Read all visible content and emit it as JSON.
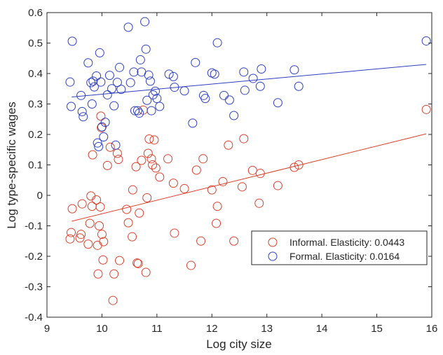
{
  "chart_data": {
    "type": "scatter",
    "xlabel": "Log city size",
    "ylabel": "Log type-specific wages",
    "xlim": [
      9,
      16
    ],
    "ylim": [
      -0.4,
      0.6
    ],
    "xticks": [
      "9",
      "10",
      "11",
      "12",
      "13",
      "14",
      "15",
      "16"
    ],
    "yticks": [
      "-0.4",
      "-0.3",
      "-0.2",
      "-0.1",
      "0",
      "0.1",
      "0.2",
      "0.3",
      "0.4",
      "0.5",
      "0.6"
    ],
    "grid": false,
    "legend_position": "lower-right",
    "series": [
      {
        "name": "Informal. Elasticity: 0.0443",
        "color": "#d9412b",
        "marker": "circle",
        "fit_line": [
          [
            9.45,
            -0.085
          ],
          [
            15.9,
            0.202
          ]
        ],
        "points": [
          [
            9.42,
            -0.143
          ],
          [
            9.44,
            -0.122
          ],
          [
            9.46,
            -0.044
          ],
          [
            9.6,
            -0.14
          ],
          [
            9.62,
            -0.128
          ],
          [
            9.64,
            -0.028
          ],
          [
            9.75,
            -0.16
          ],
          [
            9.78,
            -0.092
          ],
          [
            9.8,
            -0.002
          ],
          [
            9.82,
            -0.036
          ],
          [
            9.83,
            0.133
          ],
          [
            9.9,
            -0.015
          ],
          [
            9.92,
            -0.164
          ],
          [
            9.93,
            -0.258
          ],
          [
            9.95,
            -0.1
          ],
          [
            9.97,
            -0.038
          ],
          [
            9.98,
            0.26
          ],
          [
            9.99,
            0.222
          ],
          [
            10.0,
            -0.128
          ],
          [
            10.02,
            -0.212
          ],
          [
            10.03,
            -0.152
          ],
          [
            10.1,
            0.098
          ],
          [
            10.15,
            0.158
          ],
          [
            10.2,
            -0.345
          ],
          [
            10.22,
            -0.258
          ],
          [
            10.28,
            0.138
          ],
          [
            10.3,
            0.118
          ],
          [
            10.32,
            -0.214
          ],
          [
            10.45,
            -0.046
          ],
          [
            10.48,
            -0.09
          ],
          [
            10.55,
            -0.136
          ],
          [
            10.56,
            0.018
          ],
          [
            10.62,
            0.094
          ],
          [
            10.64,
            -0.222
          ],
          [
            10.66,
            -0.224
          ],
          [
            10.68,
            -0.058
          ],
          [
            10.72,
            0.115
          ],
          [
            10.75,
            0.28
          ],
          [
            10.8,
            -0.253
          ],
          [
            10.82,
            -0.008
          ],
          [
            10.84,
            0.138
          ],
          [
            10.86,
            0.185
          ],
          [
            10.9,
            0.12
          ],
          [
            10.92,
            0.1
          ],
          [
            10.95,
            0.182
          ],
          [
            10.98,
            0.09
          ],
          [
            11.05,
            0.06
          ],
          [
            11.2,
            0.12
          ],
          [
            11.3,
            0.04
          ],
          [
            11.32,
            -0.124
          ],
          [
            11.5,
            0.022
          ],
          [
            11.62,
            -0.23
          ],
          [
            11.72,
            0.083
          ],
          [
            11.8,
            -0.15
          ],
          [
            11.84,
            0.12
          ],
          [
            12.0,
            0.018
          ],
          [
            12.1,
            -0.036
          ],
          [
            12.08,
            -0.092
          ],
          [
            12.2,
            0.045
          ],
          [
            12.3,
            0.165
          ],
          [
            12.4,
            -0.15
          ],
          [
            12.55,
            0.028
          ],
          [
            12.58,
            0.186
          ],
          [
            12.74,
            0.082
          ],
          [
            12.86,
            -0.026
          ],
          [
            12.88,
            0.072
          ],
          [
            13.2,
            0.032
          ],
          [
            13.5,
            0.092
          ],
          [
            13.58,
            0.1
          ],
          [
            15.9,
            0.282
          ]
        ]
      },
      {
        "name": "Formal. Elasticity: 0.0164",
        "color": "#2d3fbf",
        "marker": "circle",
        "fit_line": [
          [
            9.45,
            0.323
          ],
          [
            15.9,
            0.43
          ]
        ],
        "points": [
          [
            9.42,
            0.372
          ],
          [
            9.44,
            0.292
          ],
          [
            9.46,
            0.506
          ],
          [
            9.62,
            0.328
          ],
          [
            9.64,
            0.275
          ],
          [
            9.66,
            0.258
          ],
          [
            9.75,
            0.435
          ],
          [
            9.8,
            0.37
          ],
          [
            9.82,
            0.3
          ],
          [
            9.84,
            0.375
          ],
          [
            9.86,
            0.356
          ],
          [
            9.9,
            0.392
          ],
          [
            9.92,
            0.172
          ],
          [
            9.94,
            0.16
          ],
          [
            9.96,
            0.468
          ],
          [
            9.98,
            0.372
          ],
          [
            10.0,
            0.225
          ],
          [
            10.03,
            0.192
          ],
          [
            10.06,
            0.24
          ],
          [
            10.1,
            0.33
          ],
          [
            10.14,
            0.394
          ],
          [
            10.18,
            0.35
          ],
          [
            10.22,
            0.294
          ],
          [
            10.25,
            0.165
          ],
          [
            10.28,
            0.371
          ],
          [
            10.32,
            0.42
          ],
          [
            10.35,
            0.348
          ],
          [
            10.48,
            0.552
          ],
          [
            10.52,
            0.37
          ],
          [
            10.58,
            0.405
          ],
          [
            10.6,
            0.278
          ],
          [
            10.65,
            0.278
          ],
          [
            10.68,
            0.27
          ],
          [
            10.7,
            0.445
          ],
          [
            10.72,
            0.405
          ],
          [
            10.78,
            0.57
          ],
          [
            10.8,
            0.48
          ],
          [
            10.82,
            0.312
          ],
          [
            10.85,
            0.395
          ],
          [
            10.88,
            0.375
          ],
          [
            10.9,
            0.278
          ],
          [
            10.93,
            0.33
          ],
          [
            10.97,
            0.342
          ],
          [
            11.0,
            0.318
          ],
          [
            11.05,
            0.292
          ],
          [
            11.22,
            0.398
          ],
          [
            11.3,
            0.39
          ],
          [
            11.32,
            0.355
          ],
          [
            11.5,
            0.343
          ],
          [
            11.65,
            0.237
          ],
          [
            11.7,
            0.436
          ],
          [
            11.85,
            0.328
          ],
          [
            11.88,
            0.318
          ],
          [
            12.0,
            0.402
          ],
          [
            12.05,
            0.398
          ],
          [
            12.1,
            0.501
          ],
          [
            12.22,
            0.328
          ],
          [
            12.32,
            0.313
          ],
          [
            12.4,
            0.262
          ],
          [
            12.6,
            0.345
          ],
          [
            12.58,
            0.405
          ],
          [
            12.75,
            0.384
          ],
          [
            12.88,
            0.358
          ],
          [
            12.9,
            0.415
          ],
          [
            13.2,
            0.304
          ],
          [
            13.5,
            0.412
          ],
          [
            13.58,
            0.358
          ],
          [
            15.9,
            0.507
          ]
        ]
      }
    ]
  }
}
